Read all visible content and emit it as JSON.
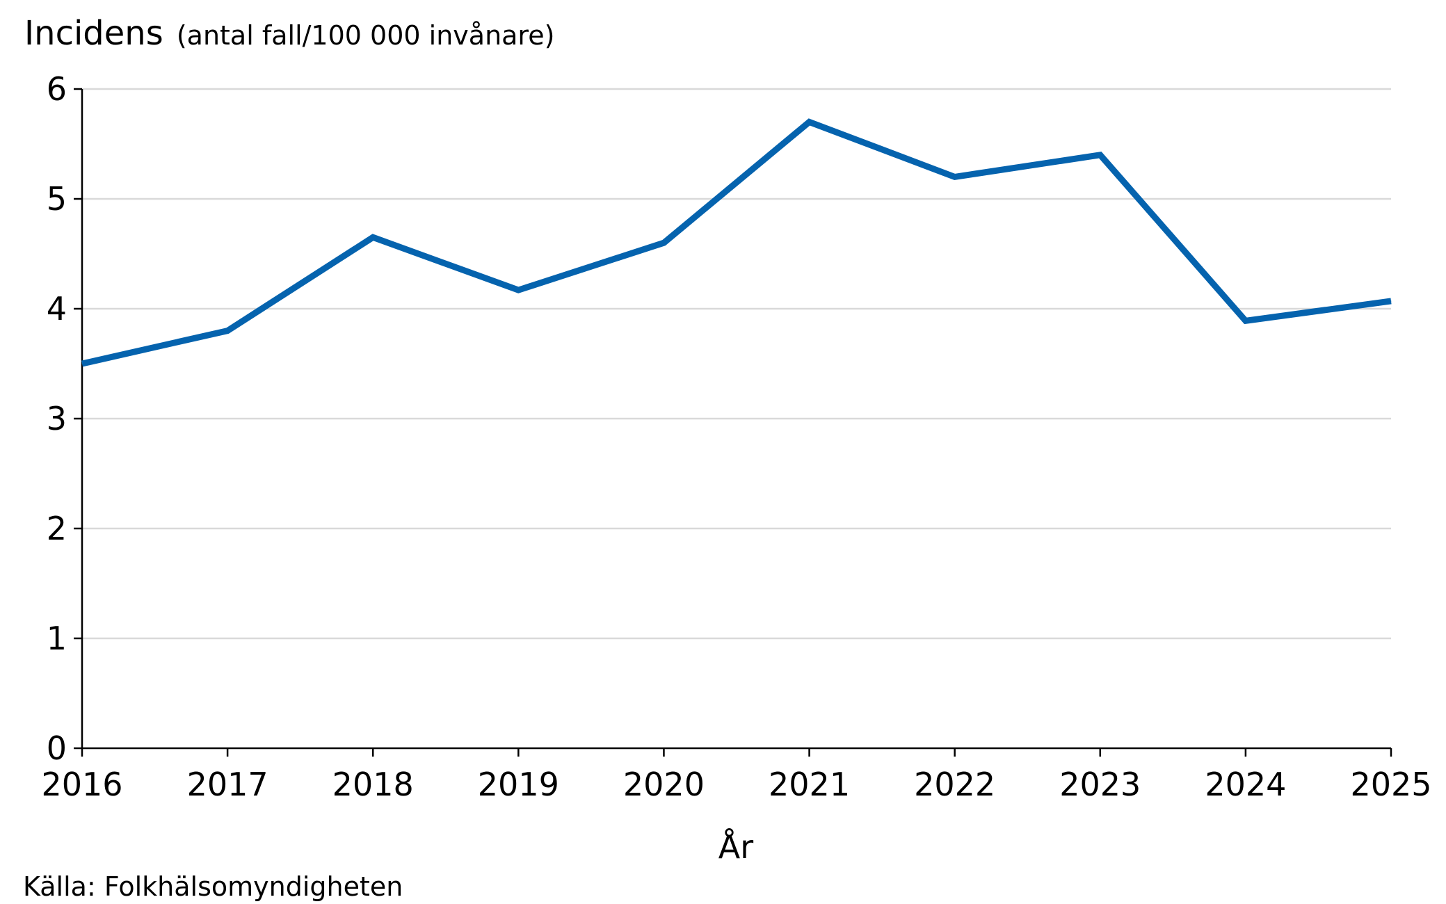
{
  "chart_data": {
    "type": "line",
    "ylabel": "Incidens",
    "ylabel_unit": "(antal fall/100 000 invånare)",
    "xlabel": "År",
    "x": [
      "2016",
      "2017",
      "2018",
      "2019",
      "2020",
      "2021",
      "2022",
      "2023",
      "2024",
      "2025"
    ],
    "series": [
      {
        "values": [
          3.5,
          3.8,
          4.65,
          4.17,
          4.6,
          5.7,
          5.2,
          5.4,
          3.89,
          4.07
        ],
        "color": "#0563AE"
      }
    ],
    "ylim": [
      0,
      6
    ],
    "yticks": [
      "0",
      "1",
      "2",
      "3",
      "4",
      "5",
      "6"
    ],
    "grid": true,
    "grid_color": "#d9d9d9",
    "legend": "none"
  },
  "source": "Källa: Folkhälsomyndigheten"
}
